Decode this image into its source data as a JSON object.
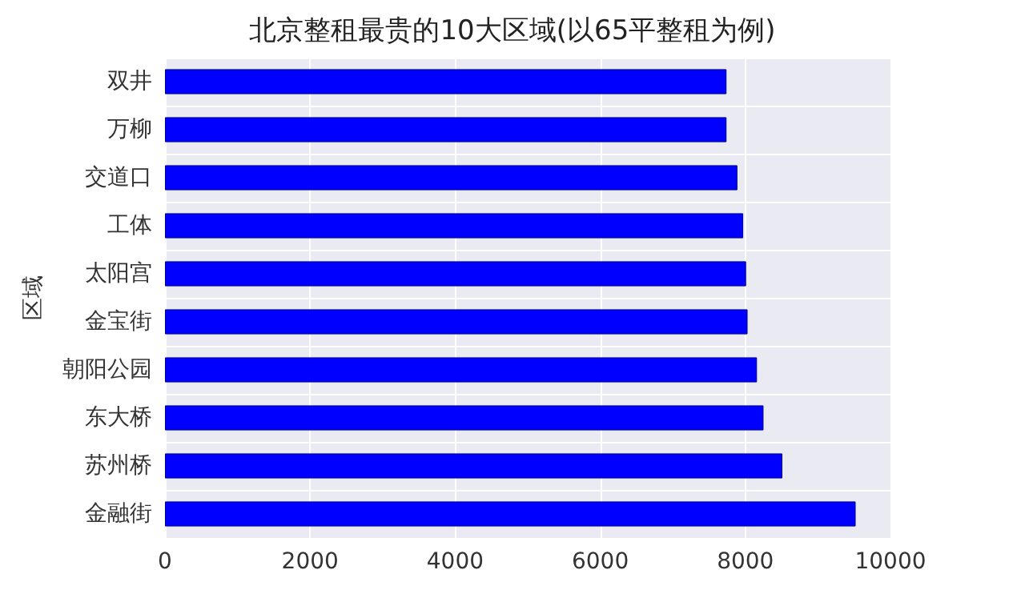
{
  "chart_data": {
    "type": "bar",
    "orientation": "horizontal",
    "title": "北京整租最贵的10大区域(以65平整租为例)",
    "ylabel": "区域",
    "categories": [
      "双井",
      "万柳",
      "交道口",
      "工体",
      "太阳宫",
      "金宝街",
      "朝阳公园",
      "东大桥",
      "苏州桥",
      "金融街"
    ],
    "values": [
      7740,
      7740,
      7890,
      7970,
      8010,
      8030,
      8160,
      8250,
      8510,
      9520
    ],
    "color": "#0000ff",
    "xlim": [
      0,
      10000
    ],
    "xticks": [
      0,
      2000,
      4000,
      6000,
      8000,
      10000
    ],
    "grid": true
  }
}
